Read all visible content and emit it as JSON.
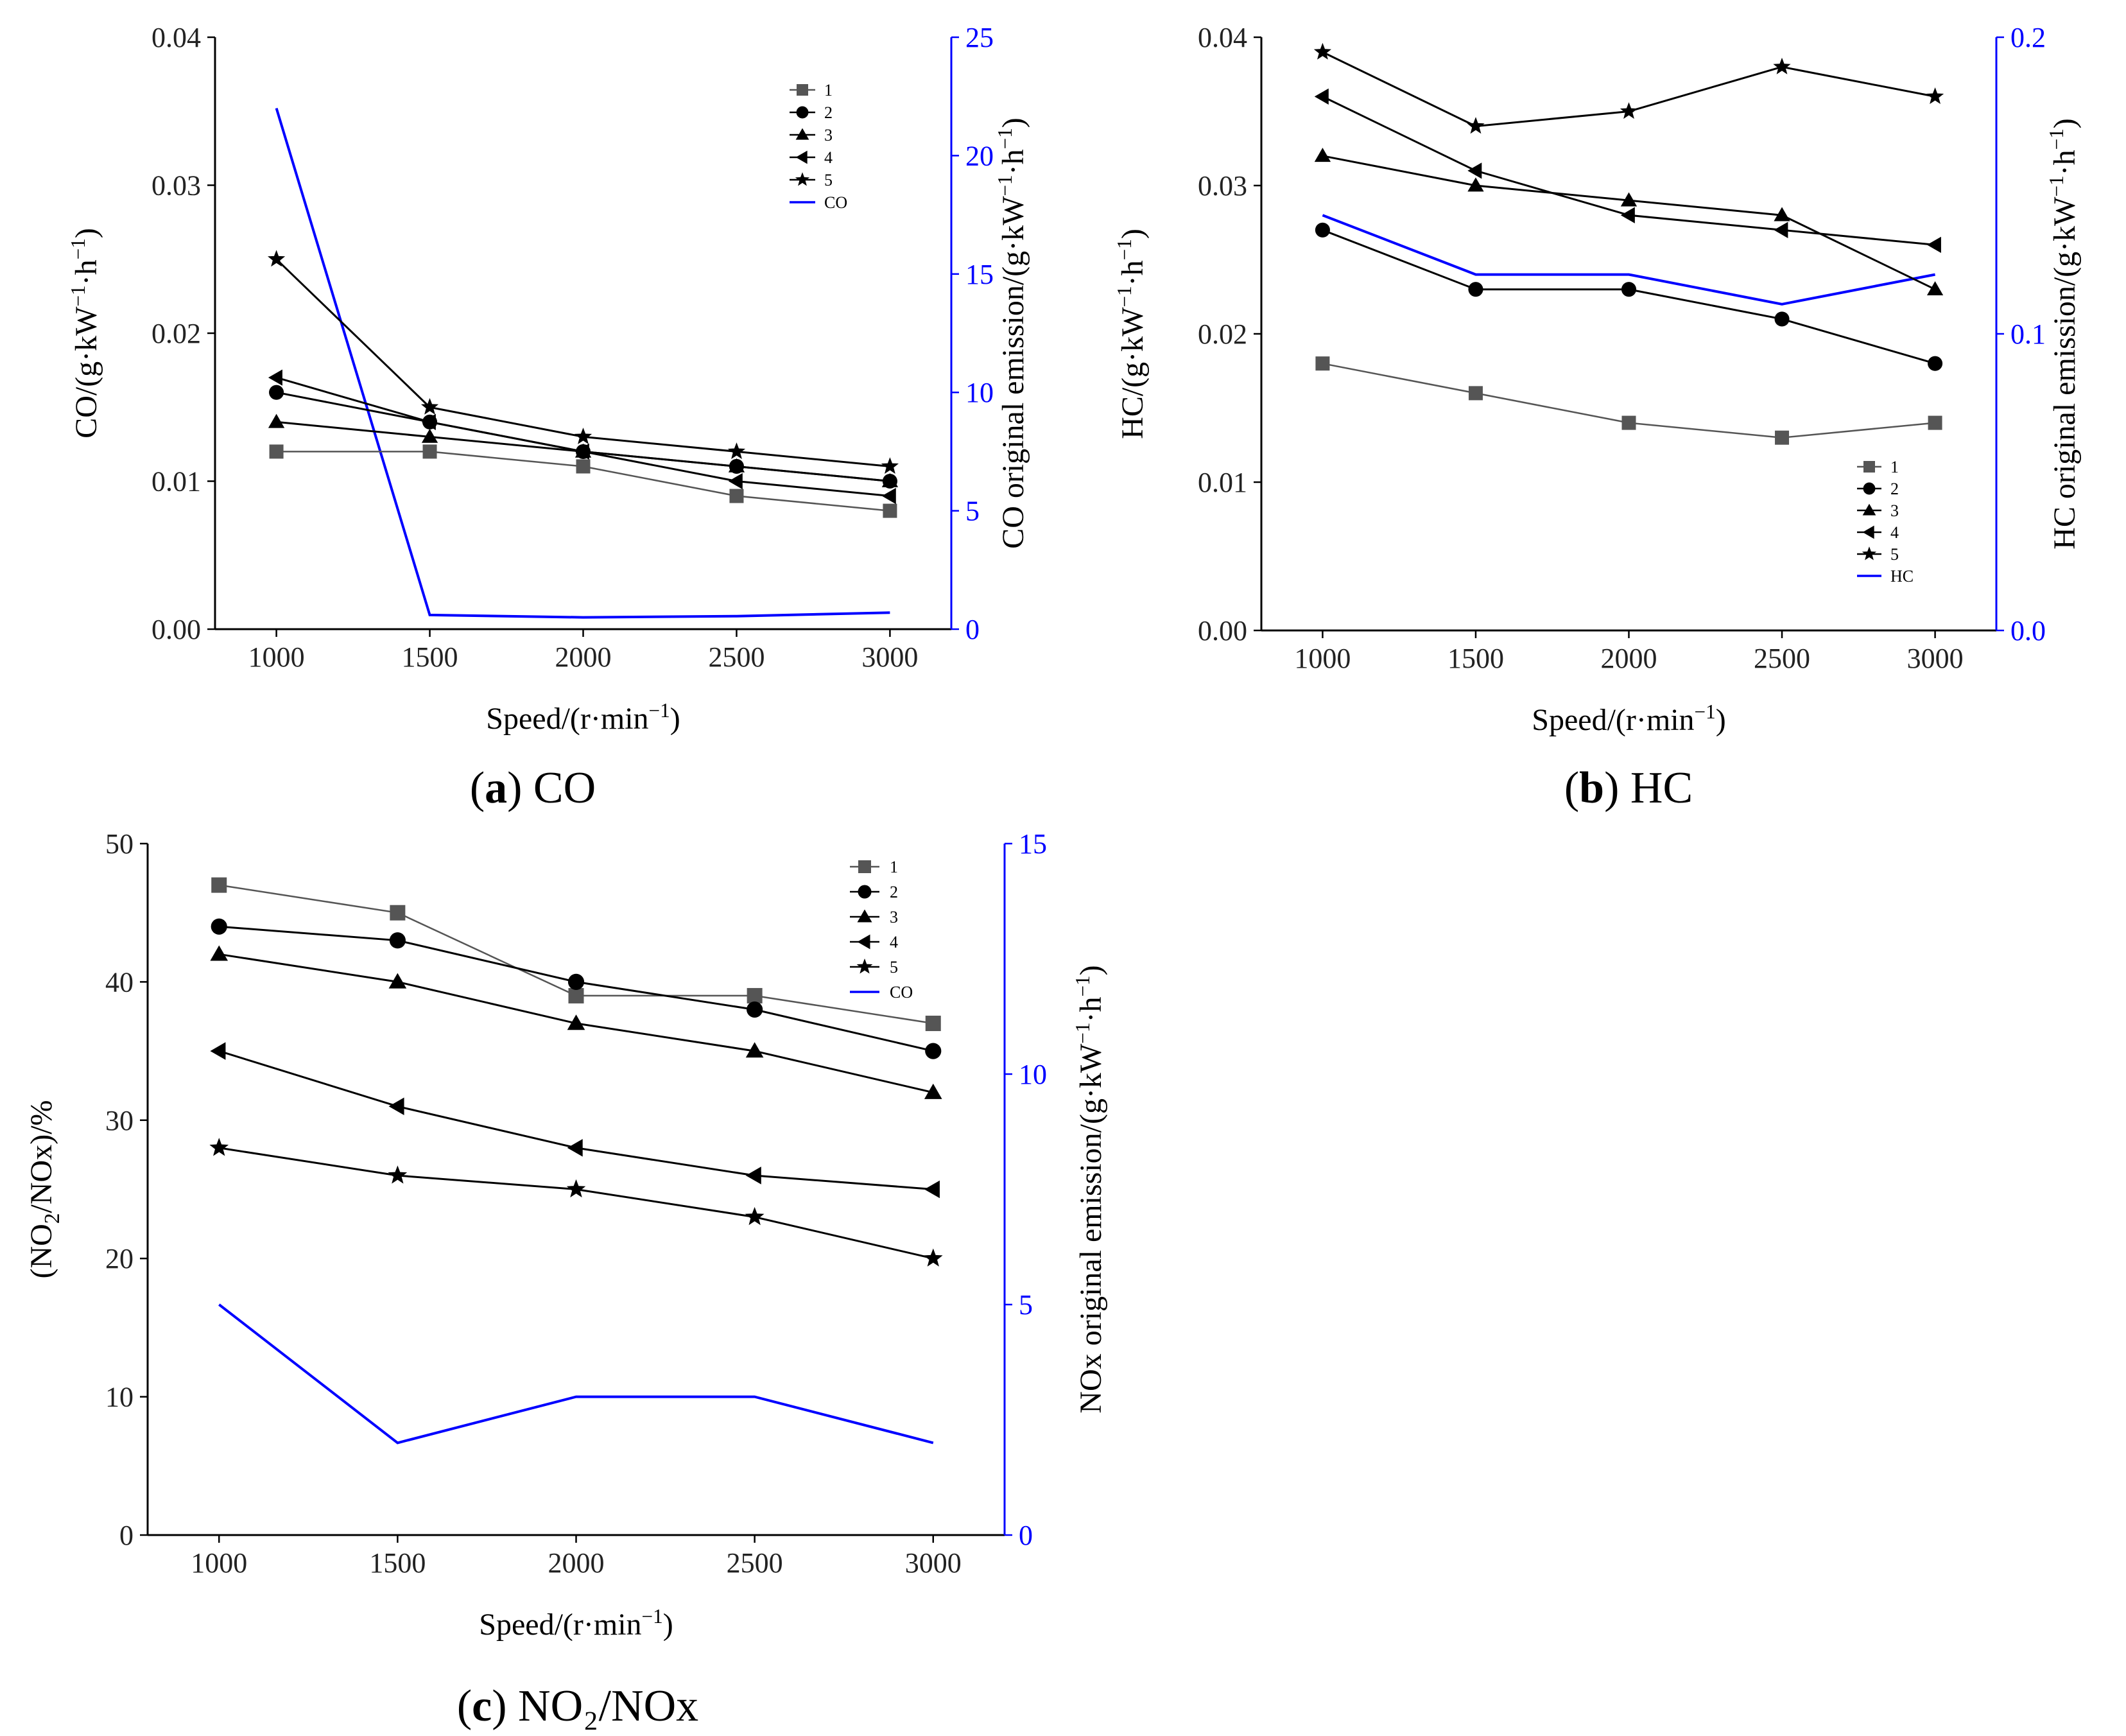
{
  "colors": {
    "primary_axis": "#000000",
    "secondary_axis": "#0000ff",
    "series1": "#555555",
    "series_other": "#000000",
    "original": "#0000ff"
  },
  "chart_data": [
    {
      "id": "a",
      "type": "line",
      "caption": "(a) CO",
      "caption_letter": "a",
      "caption_text": "CO",
      "xlabel": "Speed/(r·min⁻¹)",
      "ylabel": "CO/(g·kW⁻¹·h⁻¹)",
      "y2label": "CO original emission/(g·kW⁻¹·h⁻¹)",
      "x": [
        1000,
        1500,
        2000,
        2500,
        3000
      ],
      "xlim": [
        800,
        3200
      ],
      "ylim": [
        0,
        0.04
      ],
      "yticks": [
        "0.00",
        "0.01",
        "0.02",
        "0.03",
        "0.04"
      ],
      "y2lim": [
        0,
        25
      ],
      "y2ticks": [
        "0",
        "5",
        "10",
        "15",
        "20",
        "25"
      ],
      "legend_position": "top-right",
      "series": [
        {
          "name": "1",
          "marker": "square",
          "values": [
            0.012,
            0.012,
            0.011,
            0.009,
            0.008
          ]
        },
        {
          "name": "2",
          "marker": "circle",
          "values": [
            0.016,
            0.014,
            0.012,
            0.011,
            0.01
          ]
        },
        {
          "name": "3",
          "marker": "triangle-up",
          "values": [
            0.014,
            0.013,
            0.012,
            0.011,
            0.01
          ]
        },
        {
          "name": "4",
          "marker": "triangle-left",
          "values": [
            0.017,
            0.014,
            0.012,
            0.01,
            0.009
          ]
        },
        {
          "name": "5",
          "marker": "star",
          "values": [
            0.025,
            0.015,
            0.013,
            0.012,
            0.011
          ]
        }
      ],
      "secondary_series": {
        "name": "CO",
        "values": [
          22,
          0.6,
          0.5,
          0.55,
          0.7
        ]
      }
    },
    {
      "id": "b",
      "type": "line",
      "caption": "(b) HC",
      "caption_letter": "b",
      "caption_text": "HC",
      "xlabel": "Speed/(r·min⁻¹)",
      "ylabel": "HC/(g·kW⁻¹·h⁻¹)",
      "y2label": "HC original emission/(g·kW⁻¹·h⁻¹)",
      "x": [
        1000,
        1500,
        2000,
        2500,
        3000
      ],
      "xlim": [
        800,
        3200
      ],
      "ylim": [
        0,
        0.04
      ],
      "yticks": [
        "0.00",
        "0.01",
        "0.02",
        "0.03",
        "0.04"
      ],
      "y2lim": [
        0,
        0.2
      ],
      "y2ticks": [
        "0.0",
        "0.1",
        "0.2"
      ],
      "legend_position": "bottom-right",
      "series": [
        {
          "name": "1",
          "marker": "square",
          "values": [
            0.018,
            0.016,
            0.014,
            0.013,
            0.014
          ]
        },
        {
          "name": "2",
          "marker": "circle",
          "values": [
            0.027,
            0.023,
            0.023,
            0.021,
            0.018
          ]
        },
        {
          "name": "3",
          "marker": "triangle-up",
          "values": [
            0.032,
            0.03,
            0.029,
            0.028,
            0.023
          ]
        },
        {
          "name": "4",
          "marker": "triangle-left",
          "values": [
            0.036,
            0.031,
            0.028,
            0.027,
            0.026
          ]
        },
        {
          "name": "5",
          "marker": "star",
          "values": [
            0.039,
            0.034,
            0.035,
            0.038,
            0.036
          ]
        }
      ],
      "secondary_series": {
        "name": "HC",
        "values": [
          0.14,
          0.12,
          0.12,
          0.11,
          0.12
        ]
      }
    },
    {
      "id": "c",
      "type": "line",
      "caption": "(c) NO₂/NOx",
      "caption_letter": "c",
      "caption_text": "NO₂/NOx",
      "xlabel": "Speed/(r·min⁻¹)",
      "ylabel": "(NO₂/NOx)/%",
      "y2label": "NOx original emission/(g·kW⁻¹·h⁻¹)",
      "x": [
        1000,
        1500,
        2000,
        2500,
        3000
      ],
      "xlim": [
        800,
        3200
      ],
      "ylim": [
        0,
        50
      ],
      "yticks": [
        "0",
        "10",
        "20",
        "30",
        "40",
        "50"
      ],
      "y2lim": [
        0,
        15
      ],
      "y2ticks": [
        "0",
        "5",
        "10",
        "15"
      ],
      "legend_position": "top-right",
      "series": [
        {
          "name": "1",
          "marker": "square",
          "values": [
            47,
            45,
            39,
            39,
            37
          ]
        },
        {
          "name": "2",
          "marker": "circle",
          "values": [
            44,
            43,
            40,
            38,
            35
          ]
        },
        {
          "name": "3",
          "marker": "triangle-up",
          "values": [
            42,
            40,
            37,
            35,
            32
          ]
        },
        {
          "name": "4",
          "marker": "triangle-left",
          "values": [
            35,
            31,
            28,
            26,
            25
          ]
        },
        {
          "name": "5",
          "marker": "star",
          "values": [
            28,
            26,
            25,
            23,
            20
          ]
        }
      ],
      "secondary_series": {
        "name": "CO",
        "values": [
          5,
          2,
          3,
          3,
          2
        ]
      }
    }
  ]
}
